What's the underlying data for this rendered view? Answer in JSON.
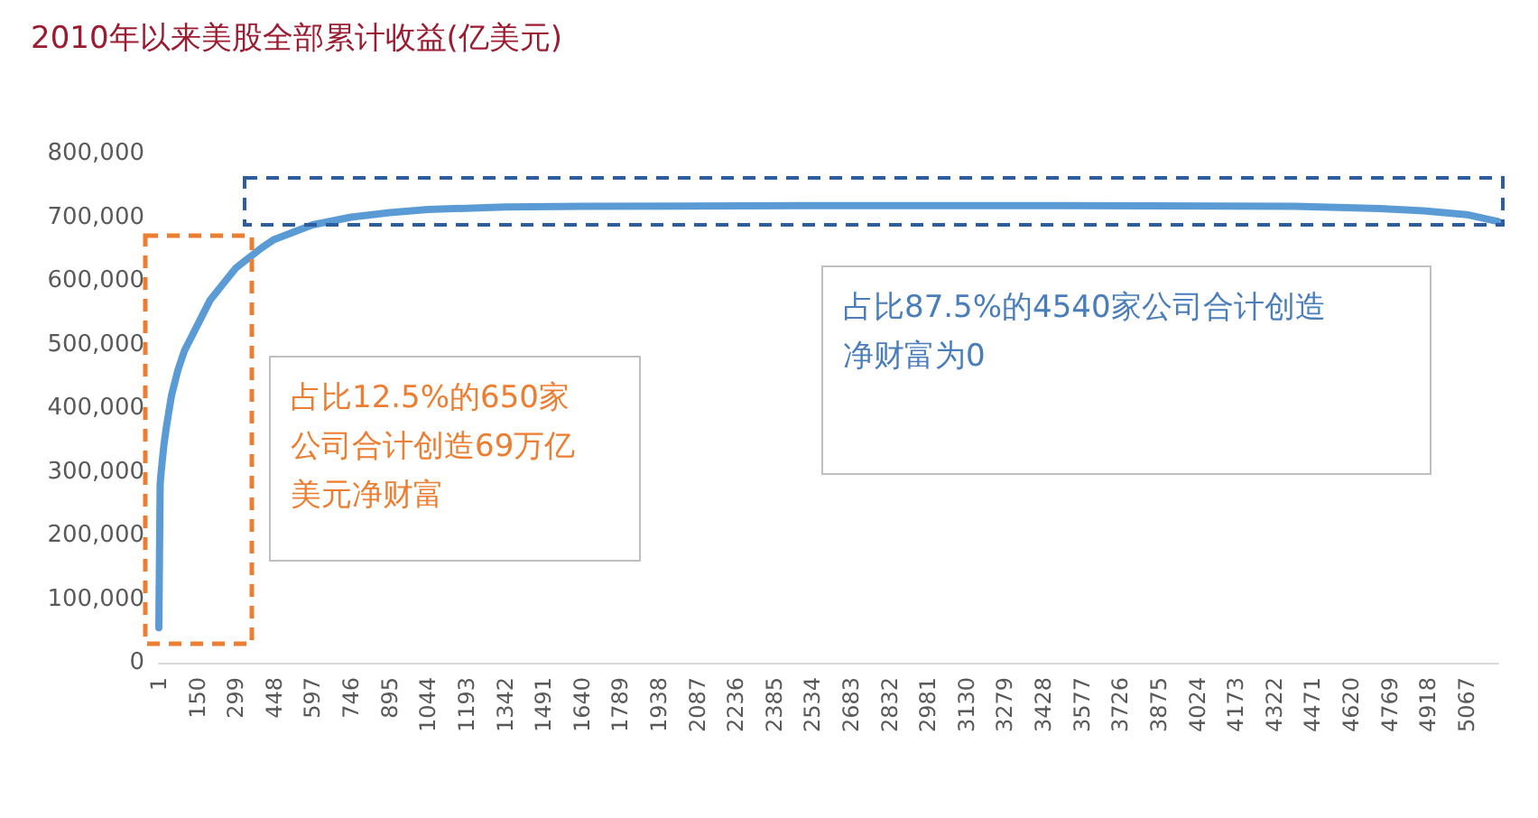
{
  "chart_data": {
    "type": "line",
    "title": "2010年以来美股全部累计收益(亿美元)",
    "annotations": [
      "占比12.5%的650家公司合计创造69万亿美元净财富",
      "占比87.5%的4540家公司合计创造净财富为0"
    ],
    "x": [
      1,
      3,
      6,
      10,
      20,
      30,
      50,
      75,
      100,
      150,
      200,
      299,
      400,
      448,
      597,
      746,
      895,
      1044,
      1193,
      1342,
      1640,
      2500,
      3500,
      4400,
      4700,
      4900,
      5067,
      5190
    ],
    "series": [
      {
        "color": "#5b9bd5",
        "values": [
          55000,
          150000,
          280000,
          300000,
          340000,
          370000,
          420000,
          460000,
          490000,
          530000,
          570000,
          620000,
          652000,
          665000,
          688000,
          700000,
          707000,
          712000,
          714000,
          716000,
          717000,
          718000,
          718000,
          717000,
          714000,
          710000,
          704000,
          693000
        ]
      }
    ],
    "xlim": [
      1,
      5190
    ],
    "xticks": [
      1,
      150,
      299,
      448,
      597,
      746,
      895,
      1044,
      1193,
      1342,
      1491,
      1640,
      1789,
      1938,
      2087,
      2236,
      2385,
      2534,
      2683,
      2832,
      2981,
      3130,
      3279,
      3428,
      3577,
      3726,
      3875,
      4024,
      4173,
      4322,
      4471,
      4620,
      4769,
      4918,
      5067
    ],
    "ylim": [
      0,
      800000
    ],
    "yticks": [
      0,
      {
        "value": 100000,
        "label": "100,000"
      },
      {
        "value": 200000,
        "label": "200,000"
      },
      {
        "value": 300000,
        "label": "300,000"
      },
      {
        "value": 400000,
        "label": "400,000"
      },
      {
        "value": 500000,
        "label": "500,000"
      },
      {
        "value": 600000,
        "label": "600,000"
      },
      {
        "value": 700000,
        "label": "700,000"
      },
      {
        "value": 800000,
        "label": "800,000"
      }
    ],
    "grid": false,
    "marker": "none",
    "line_style": "solid"
  }
}
